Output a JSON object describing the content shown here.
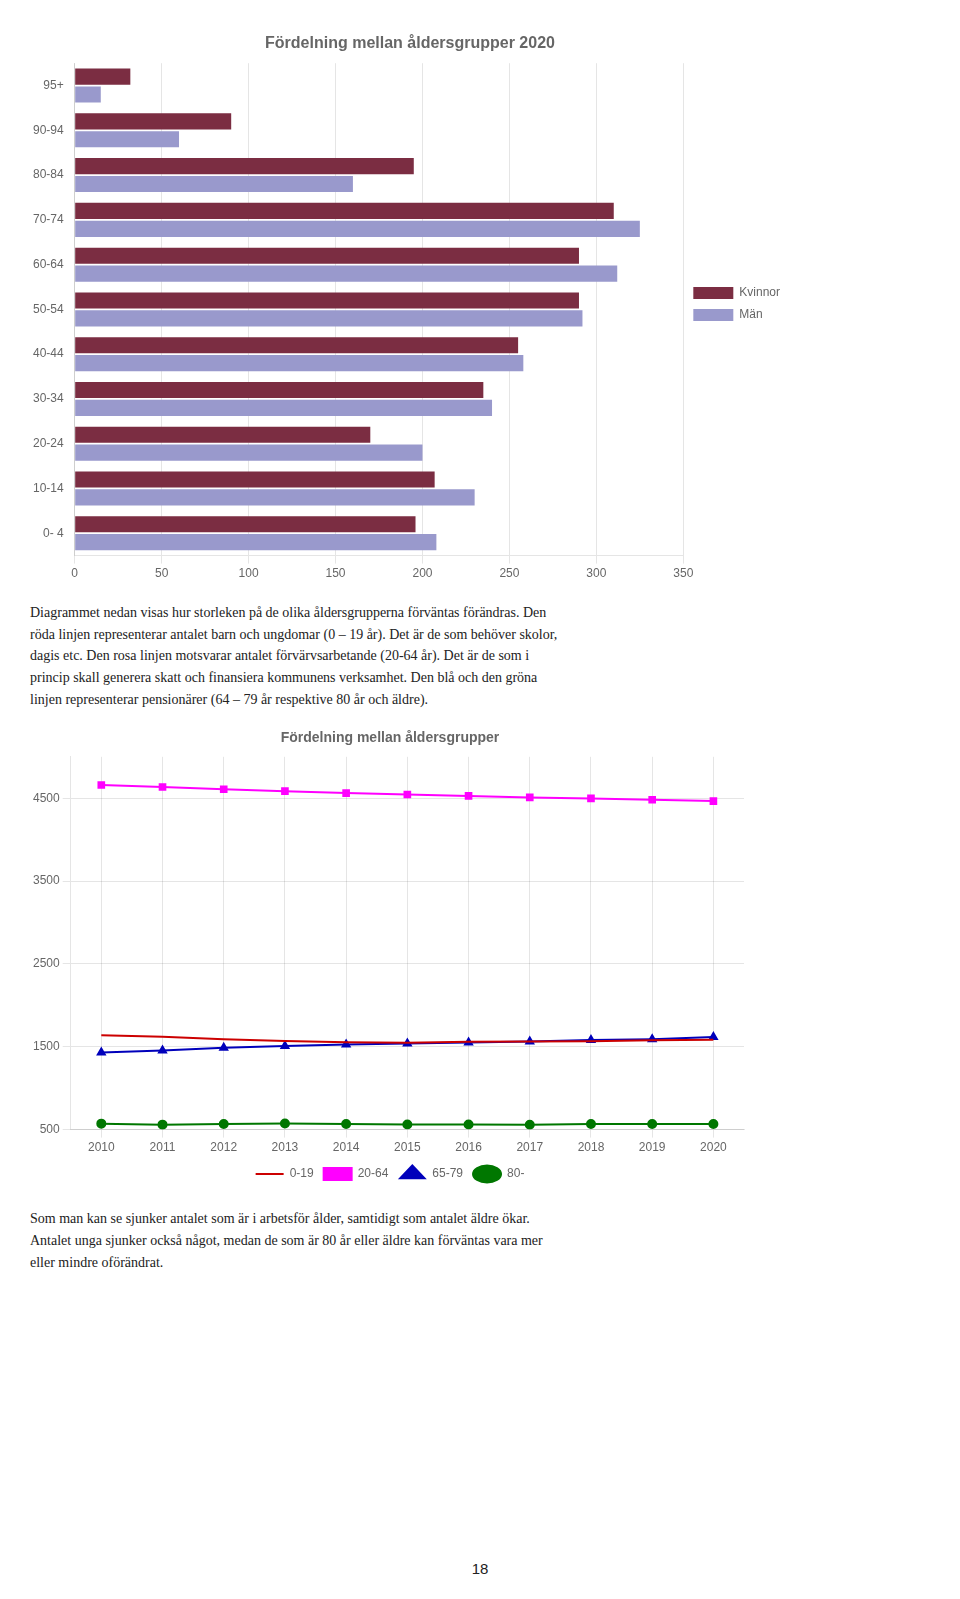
{
  "chart_data": [
    {
      "type": "bar",
      "orientation": "horizontal",
      "title": "Fördelning mellan åldersgrupper 2020",
      "categories": [
        "0- 4",
        "10-14",
        "20-24",
        "30-34",
        "40-44",
        "50-54",
        "60-64",
        "70-74",
        "80-84",
        "90-94",
        "95+"
      ],
      "series": [
        {
          "name": "Kvinnor",
          "color": "#7B2D42",
          "values": [
            196,
            207,
            170,
            235,
            255,
            290,
            290,
            310,
            195,
            90,
            32
          ]
        },
        {
          "name": "Män",
          "color": "#9999CC",
          "values": [
            208,
            230,
            200,
            240,
            258,
            292,
            312,
            325,
            160,
            60,
            15
          ]
        }
      ],
      "xlim": [
        0,
        350
      ],
      "xticks": [
        0,
        50,
        100,
        150,
        200,
        250,
        300,
        350
      ],
      "grid": "x",
      "legend": "right",
      "annotations": [
        "Diagrammet nedan visas hur storleken på de olika åldersgrupperna förväntas förändras. Den",
        "röda linjen representerar antalet barn och ungdomar (0 – 19 år). Det är de som behöver skolor,",
        "dagis etc. Den rosa linjen motsvarar antalet förvärvsarbetande (20-64 år). Det är de som i",
        "princip skall generera skatt och finansiera kommunens verksamhet. Den blå och den gröna",
        "linjen representerar pensionärer (64 – 79 år respektive 80 år och äldre)."
      ]
    },
    {
      "type": "line",
      "title": "Fördelning mellan åldersgrupper",
      "x": [
        2010,
        2011,
        2012,
        2013,
        2014,
        2015,
        2016,
        2017,
        2018,
        2019,
        2020
      ],
      "series": [
        {
          "name": "0-19",
          "color": "#CC0000",
          "values": [
            1640,
            1620,
            1590,
            1570,
            1555,
            1548,
            1560,
            1562,
            1565,
            1580,
            1585
          ]
        },
        {
          "name": "20-64",
          "color": "#FF00FF",
          "marker": "square",
          "values": [
            4660,
            4635,
            4608,
            4585,
            4562,
            4545,
            4528,
            4510,
            4498,
            4482,
            4465
          ]
        },
        {
          "name": "65-79",
          "color": "#0000BB",
          "marker": "triangle",
          "values": [
            1430,
            1455,
            1488,
            1508,
            1528,
            1538,
            1552,
            1563,
            1582,
            1592,
            1618
          ]
        },
        {
          "name": "80-",
          "color": "#007700",
          "marker": "circle",
          "values": [
            572,
            560,
            567,
            573,
            568,
            562,
            562,
            558,
            567,
            568,
            568
          ]
        }
      ],
      "xlim": [
        2009.5,
        2020.5
      ],
      "xticks": [
        2010,
        2011,
        2012,
        2013,
        2014,
        2015,
        2016,
        2017,
        2018,
        2019,
        2020
      ],
      "ylim": [
        500,
        5000
      ],
      "yticks": [
        500,
        1500,
        2500,
        3500,
        4500
      ],
      "grid": true,
      "legend": "bottom",
      "annotations": [
        "Som man kan se sjunker antalet som är i arbetsför ålder, samtidigt som antalet äldre ökar.",
        "Antalet unga sjunker också något, medan de som är 80 år eller äldre kan förväntas vara mer",
        "eller mindre oförändrat."
      ]
    }
  ],
  "annotations": [
    "18"
  ]
}
